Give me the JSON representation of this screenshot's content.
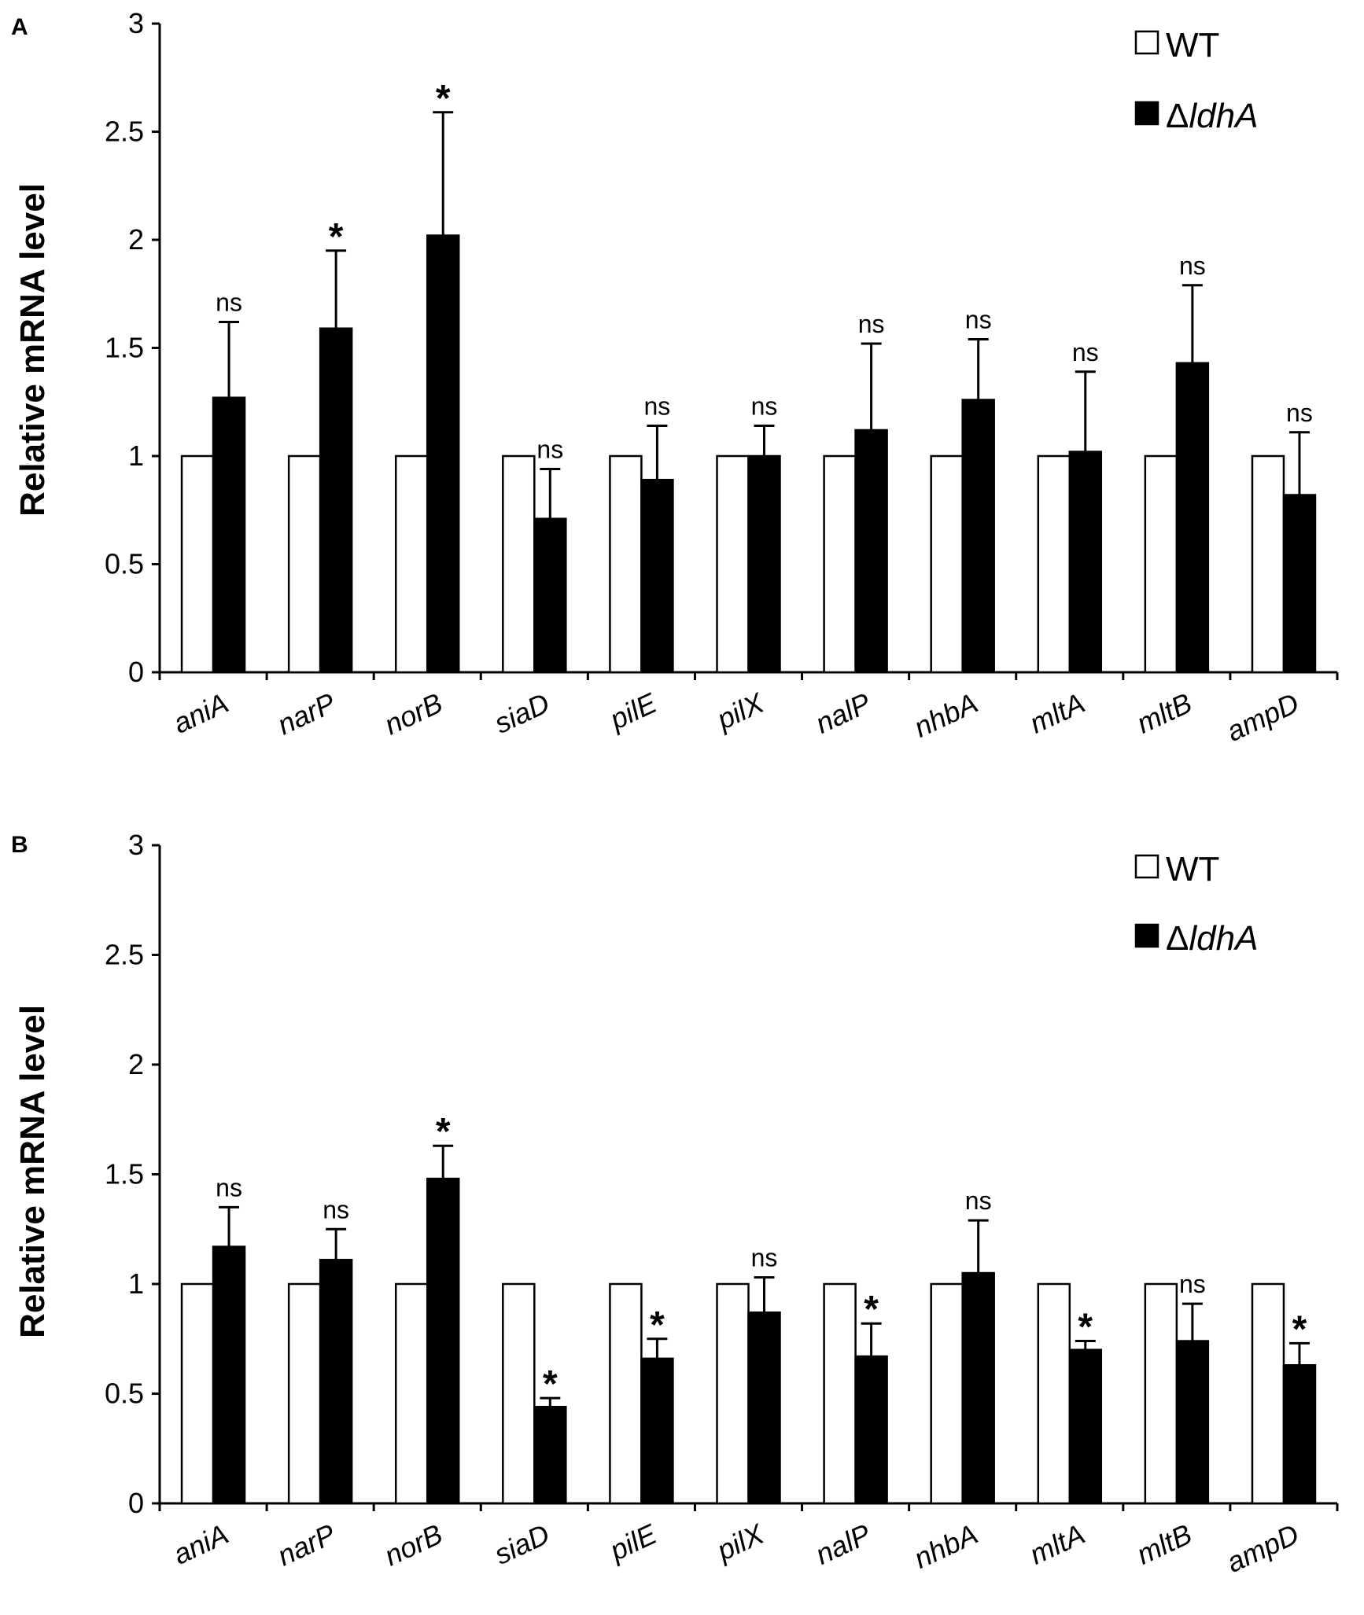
{
  "chart_data": [
    {
      "type": "bar",
      "panel": "A",
      "title": "",
      "xlabel": "",
      "ylabel": "Relative mRNA level",
      "ylim": [
        0,
        3
      ],
      "yticks": [
        "0",
        "0.5",
        "1",
        "1.5",
        "2",
        "2.5",
        "3"
      ],
      "grid": false,
      "legend_position": "top-right",
      "categories": [
        "aniA",
        "narP",
        "norB",
        "siaD",
        "pilE",
        "pilX",
        "nalP",
        "nhbA",
        "mltA",
        "mltB",
        "ampD"
      ],
      "series": [
        {
          "name": "WT",
          "color": "#ffffff",
          "values": [
            1,
            1,
            1,
            1,
            1,
            1,
            1,
            1,
            1,
            1,
            1
          ]
        },
        {
          "name": "ΔldhA",
          "color": "#000000",
          "values": [
            1.27,
            1.59,
            2.02,
            0.71,
            0.89,
            1.0,
            1.12,
            1.26,
            1.02,
            1.43,
            0.82
          ],
          "errors": [
            0.35,
            0.36,
            0.57,
            0.23,
            0.25,
            0.14,
            0.4,
            0.28,
            0.37,
            0.36,
            0.29
          ]
        }
      ],
      "significance": [
        "ns",
        "*",
        "*",
        "ns",
        "ns",
        "ns",
        "ns",
        "ns",
        "ns",
        "ns",
        "ns"
      ]
    },
    {
      "type": "bar",
      "panel": "B",
      "title": "",
      "xlabel": "",
      "ylabel": "Relative mRNA level",
      "ylim": [
        0,
        3
      ],
      "yticks": [
        "0",
        "0.5",
        "1",
        "1.5",
        "2",
        "2.5",
        "3"
      ],
      "grid": false,
      "legend_position": "top-right",
      "categories": [
        "aniA",
        "narP",
        "norB",
        "siaD",
        "pilE",
        "pilX",
        "nalP",
        "nhbA",
        "mltA",
        "mltB",
        "ampD"
      ],
      "series": [
        {
          "name": "WT",
          "color": "#ffffff",
          "values": [
            1,
            1,
            1,
            1,
            1,
            1,
            1,
            1,
            1,
            1,
            1
          ]
        },
        {
          "name": "ΔldhA",
          "color": "#000000",
          "values": [
            1.17,
            1.11,
            1.48,
            0.44,
            0.66,
            0.87,
            0.67,
            1.05,
            0.7,
            0.74,
            0.63
          ],
          "errors": [
            0.18,
            0.14,
            0.15,
            0.04,
            0.09,
            0.16,
            0.15,
            0.24,
            0.04,
            0.17,
            0.1
          ]
        }
      ],
      "significance": [
        "ns",
        "ns",
        "*",
        "*",
        "*",
        "ns",
        "*",
        "ns",
        "*",
        "ns",
        "*"
      ]
    }
  ]
}
